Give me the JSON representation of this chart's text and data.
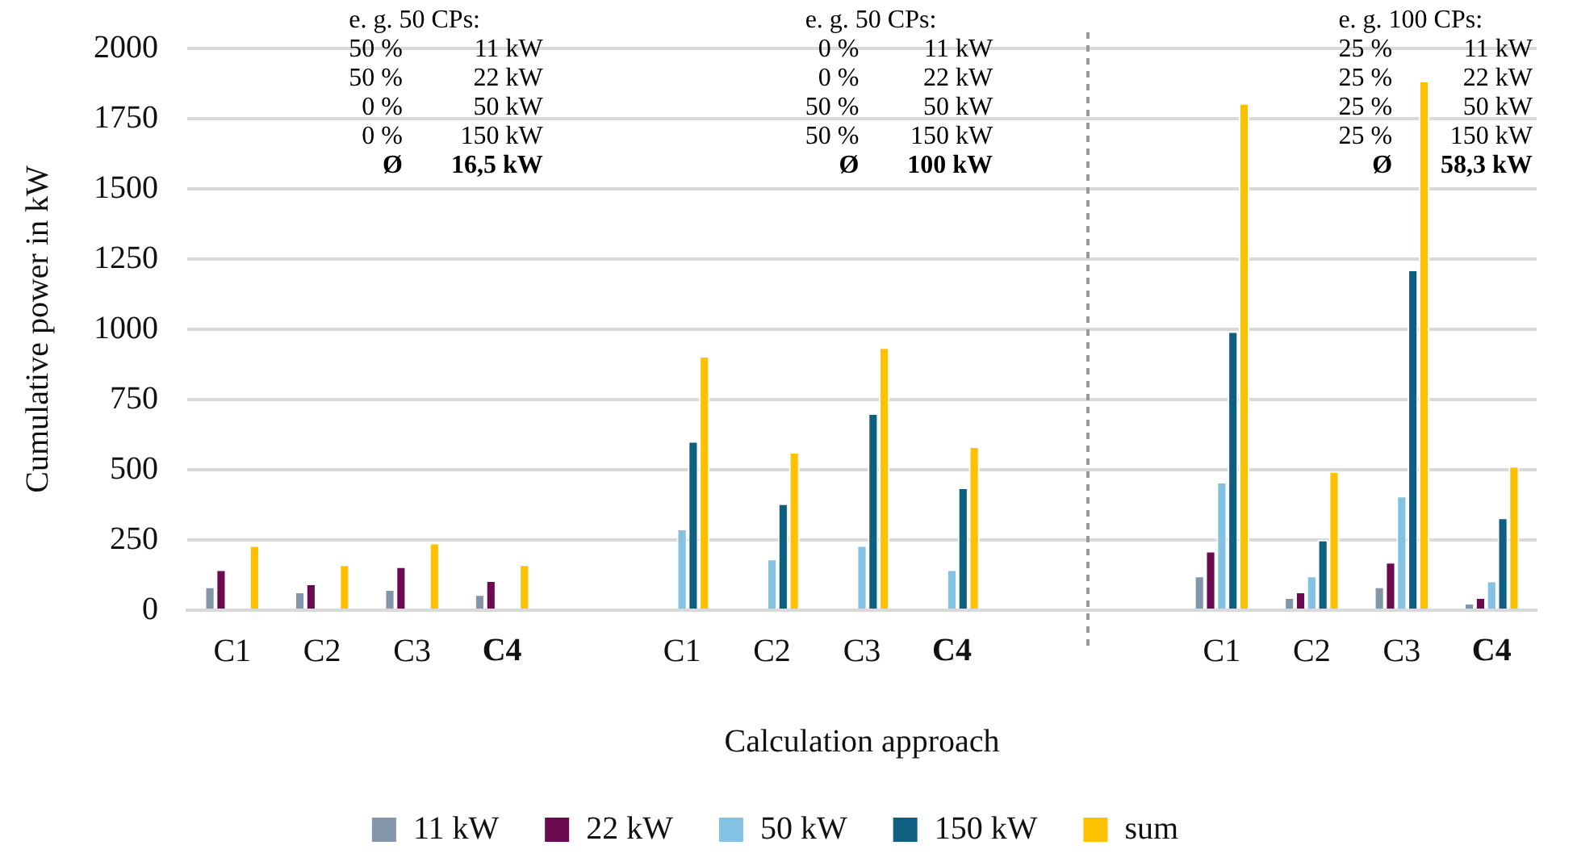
{
  "chart_data": {
    "type": "bar",
    "xlabel": "Calculation approach",
    "ylabel": "Cumulative power in kW",
    "categories": [
      "C1",
      "C2",
      "C3",
      "C4",
      null,
      "C1",
      "C2",
      "C3",
      "C4",
      null,
      null,
      "C1",
      "C2",
      "C3",
      "C4"
    ],
    "series": [
      {
        "name": "11 kW",
        "color": "#8497a8",
        "values": [
          84,
          66,
          75,
          57,
          null,
          0,
          0,
          0,
          0,
          null,
          null,
          123,
          46,
          84,
          26
        ]
      },
      {
        "name": "22 kW",
        "color": "#6b0a4f",
        "values": [
          145,
          95,
          156,
          106,
          null,
          0,
          0,
          0,
          0,
          null,
          null,
          211,
          66,
          172,
          46
        ]
      },
      {
        "name": "50 kW",
        "color": "#83c2e3",
        "values": [
          0,
          0,
          0,
          0,
          null,
          290,
          183,
          231,
          145,
          null,
          null,
          457,
          123,
          407,
          105
        ]
      },
      {
        "name": "150 kW",
        "color": "#0f5f80",
        "values": [
          0,
          0,
          0,
          0,
          null,
          602,
          380,
          701,
          437,
          null,
          null,
          993,
          251,
          1213,
          330
        ]
      },
      {
        "name": "sum",
        "color": "#ffc000",
        "values": [
          231,
          163,
          240,
          163,
          null,
          905,
          563,
          936,
          583,
          null,
          null,
          1805,
          495,
          1885,
          514
        ]
      }
    ],
    "ylim": [
      0,
      2000
    ],
    "yticks": [
      0,
      250,
      500,
      750,
      1000,
      1250,
      1500,
      1750,
      2000
    ],
    "grid": "y",
    "legend": "bottom",
    "annotations": [
      "e. g. 50 CPs:\n50 %\t11 kW\n50 %\t22 kW\n0 %\t50 kW\n0 %\t150 kW\nØ\t16,5 kW",
      "e. g. 50 CPs:\n0 %\t11 kW\n0 %\t22 kW\n50 %\t50 kW\n50 %\t150 kW\nØ\t100 kW",
      "e. g. 100 CPs:\n25 %\t11 kW\n25 %\t22 kW\n25 %\t50 kW\n25 %\t150 kW\nØ\t58,3 kW"
    ]
  }
}
